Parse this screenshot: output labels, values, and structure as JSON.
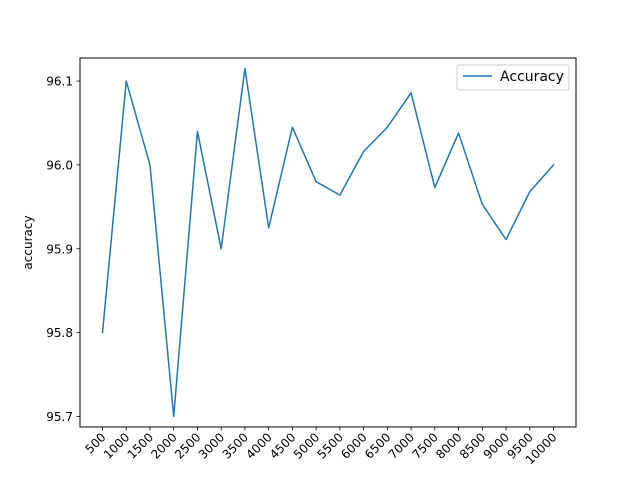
{
  "chart_data": {
    "type": "line",
    "title": "",
    "xlabel": "",
    "ylabel": "accuracy",
    "x": [
      500,
      1000,
      1500,
      2000,
      2500,
      3000,
      3500,
      4000,
      4500,
      5000,
      5500,
      6000,
      6500,
      7000,
      7500,
      8000,
      8500,
      9000,
      9500,
      10000
    ],
    "x_tick_labels": [
      "500",
      "1000",
      "1500",
      "2000",
      "2500",
      "3000",
      "3500",
      "4000",
      "4500",
      "5000",
      "5500",
      "6000",
      "6500",
      "7000",
      "7500",
      "8000",
      "8500",
      "9000",
      "9500",
      "10000"
    ],
    "y_ticks": [
      95.7,
      95.8,
      95.9,
      96.0,
      96.1
    ],
    "y_tick_labels": [
      "95.7",
      "95.8",
      "95.9",
      "96.0",
      "96.1"
    ],
    "ylim": [
      95.6875,
      96.1275
    ],
    "grid": false,
    "legend_position": "top-right",
    "series": [
      {
        "name": "Accuracy",
        "color": "#1f77b4",
        "values": [
          95.8,
          96.1,
          96.0,
          95.7,
          96.04,
          95.9,
          96.115,
          95.925,
          96.045,
          95.98,
          95.964,
          96.016,
          96.045,
          96.086,
          95.973,
          96.038,
          95.953,
          95.911,
          95.968,
          96.0
        ]
      }
    ]
  }
}
